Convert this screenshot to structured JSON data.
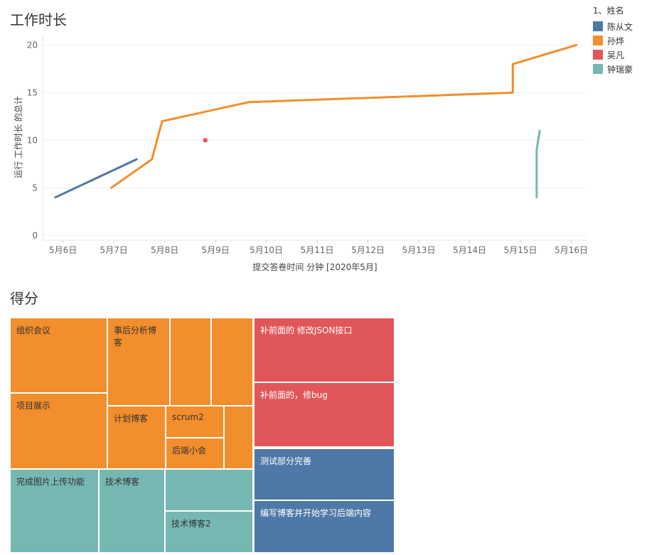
{
  "line_panel": {
    "title": "工作时长"
  },
  "treemap_panel": {
    "title": "得分"
  },
  "legend": {
    "title": "1、姓名",
    "items": [
      {
        "label": "陈从文",
        "color": "#4e79a7"
      },
      {
        "label": "孙烨",
        "color": "#f28e2b"
      },
      {
        "label": "吴凡",
        "color": "#e15759"
      },
      {
        "label": "钟瑞豪",
        "color": "#76b7b2"
      }
    ]
  },
  "chart_data": [
    {
      "type": "line",
      "title": "工作时长",
      "xlabel": "提交答卷时间 分钟 [2020年5月]",
      "ylabel": "运行 工作时长 的总计",
      "xlim": [
        5.6,
        16.3
      ],
      "ylim": [
        -0.5,
        21
      ],
      "yticks": [
        0,
        5,
        10,
        15,
        20
      ],
      "xticks": [
        {
          "value": 6,
          "label": "5月6日"
        },
        {
          "value": 7,
          "label": "5月7日"
        },
        {
          "value": 8,
          "label": "5月8日"
        },
        {
          "value": 9,
          "label": "5月9日"
        },
        {
          "value": 10,
          "label": "5月10日"
        },
        {
          "value": 11,
          "label": "5月11日"
        },
        {
          "value": 12,
          "label": "5月12日"
        },
        {
          "value": 13,
          "label": "5月13日"
        },
        {
          "value": 14,
          "label": "5月14日"
        },
        {
          "value": 15,
          "label": "5月15日"
        },
        {
          "value": 16,
          "label": "5月16日"
        }
      ],
      "series": [
        {
          "name": "陈从文",
          "color": "#4e79a7",
          "points": [
            [
              5.85,
              4
            ],
            [
              7.45,
              8
            ]
          ]
        },
        {
          "name": "孙烨",
          "color": "#f28e2b",
          "points": [
            [
              6.95,
              5
            ],
            [
              7.75,
              8
            ],
            [
              7.95,
              12
            ],
            [
              9.65,
              14
            ],
            [
              14.85,
              15
            ],
            [
              14.85,
              18
            ],
            [
              16.1,
              20
            ]
          ]
        },
        {
          "name": "吴凡",
          "color": "#e15759",
          "points": [
            [
              8.8,
              10
            ]
          ]
        },
        {
          "name": "钟瑞豪",
          "color": "#76b7b2",
          "points": [
            [
              15.32,
              4
            ],
            [
              15.32,
              9
            ],
            [
              15.38,
              11
            ]
          ]
        }
      ]
    },
    {
      "type": "treemap",
      "title": "得分",
      "groups": [
        {
          "name": "孙烨",
          "color": "#f28e2b",
          "cells": [
            {
              "label": "组织会议"
            },
            {
              "label": "项目展示"
            },
            {
              "label": "事后分析博客"
            },
            {
              "label": ""
            },
            {
              "label": ""
            },
            {
              "label": "计划博客"
            },
            {
              "label": "scrum2"
            },
            {
              "label": "后端小会"
            },
            {
              "label": ""
            }
          ]
        },
        {
          "name": "钟瑞豪",
          "color": "#76b7b2",
          "cells": [
            {
              "label": "完成图片上传功能"
            },
            {
              "label": "技术博客"
            },
            {
              "label": ""
            },
            {
              "label": "技术博客2"
            }
          ]
        },
        {
          "name": "吴凡",
          "color": "#e15759",
          "cells": [
            {
              "label": "补前面的 修改JSON接口"
            },
            {
              "label": "补前面的，修bug"
            }
          ]
        },
        {
          "name": "陈从文",
          "color": "#4e79a7",
          "cells": [
            {
              "label": "测试部分完善"
            },
            {
              "label": "编写博客并开始学习后端内容"
            }
          ]
        }
      ]
    }
  ]
}
